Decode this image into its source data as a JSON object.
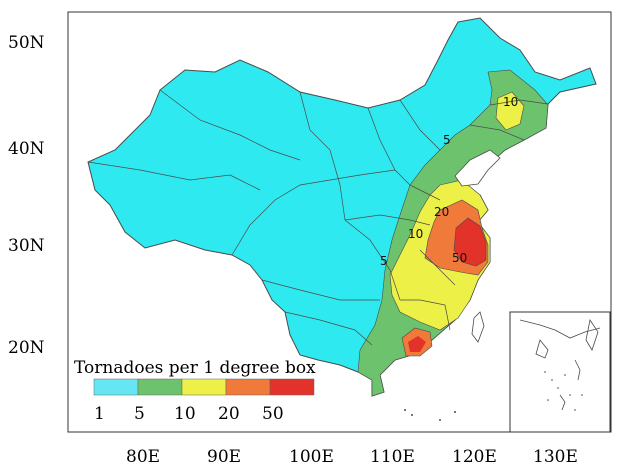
{
  "map": {
    "lat_labels": [
      "50N",
      "40N",
      "30N",
      "20N"
    ],
    "lon_labels": [
      "80E",
      "90E",
      "100E",
      "110E",
      "120E",
      "130E"
    ],
    "contour_labels": [
      "5",
      "10",
      "5",
      "10",
      "20",
      "50"
    ],
    "legend": {
      "title": "Tornadoes per 1 degree box",
      "ticks": [
        "1",
        "5",
        "10",
        "20",
        "50"
      ],
      "colors": [
        "#66e6f2",
        "#6dc36d",
        "#ecf047",
        "#ef7a3a",
        "#e3322a"
      ]
    },
    "colors": {
      "base_fill": "#2ee9ef",
      "border": "#4a4a4a",
      "frame": "#333333"
    }
  }
}
